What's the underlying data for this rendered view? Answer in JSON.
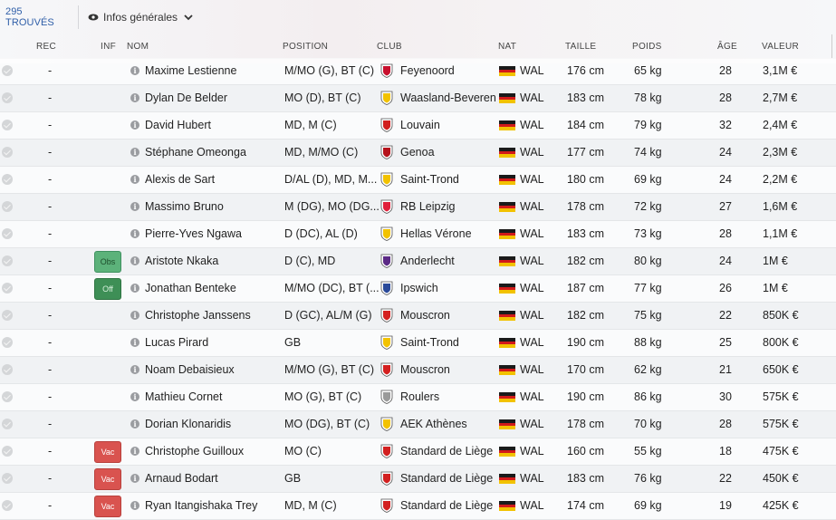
{
  "toolbar": {
    "found": "295 TROUVÉS",
    "view": "Infos générales"
  },
  "columns": {
    "rec": "REC",
    "inf": "INF",
    "nom": "NOM",
    "position": "POSITION",
    "club": "CLUB",
    "nat": "NAT",
    "taille": "TAILLE",
    "poids": "POIDS",
    "age": "ÂGE",
    "valeur": "VALEUR"
  },
  "colors": {
    "flag_black": "#1a1a1a",
    "flag_red": "#d21a1a",
    "flag_gold": "#f2c200"
  },
  "players": [
    {
      "rec": "-",
      "inf": "",
      "nom": "Maxime Lestienne",
      "position": "M/MO (G), BT (C)",
      "club": "Feyenoord",
      "crest": "#c8102e",
      "nat": "WAL",
      "taille": "176 cm",
      "poids": "65 kg",
      "age": "28",
      "valeur": "3,1M €"
    },
    {
      "rec": "-",
      "inf": "",
      "nom": "Dylan De Belder",
      "position": "MO (D), BT (C)",
      "club": "Waasland-Beveren",
      "crest": "#f2c200",
      "nat": "WAL",
      "taille": "183 cm",
      "poids": "78 kg",
      "age": "28",
      "valeur": "2,7M €"
    },
    {
      "rec": "-",
      "inf": "",
      "nom": "David Hubert",
      "position": "MD, M (C)",
      "club": "Louvain",
      "crest": "#d11f1f",
      "nat": "WAL",
      "taille": "184 cm",
      "poids": "79 kg",
      "age": "32",
      "valeur": "2,4M €"
    },
    {
      "rec": "-",
      "inf": "",
      "nom": "Stéphane Omeonga",
      "position": "MD, M/MO (C)",
      "club": "Genoa",
      "crest": "#b5121b",
      "nat": "WAL",
      "taille": "177 cm",
      "poids": "74 kg",
      "age": "24",
      "valeur": "2,3M €"
    },
    {
      "rec": "-",
      "inf": "",
      "nom": "Alexis de Sart",
      "position": "D/AL (D), MD, M...",
      "club": "Saint-Trond",
      "crest": "#f2c200",
      "nat": "WAL",
      "taille": "180 cm",
      "poids": "69 kg",
      "age": "24",
      "valeur": "2,2M €"
    },
    {
      "rec": "-",
      "inf": "",
      "nom": "Massimo Bruno",
      "position": "M (DG), MO (DG...",
      "club": "RB Leipzig",
      "crest": "#e0203a",
      "nat": "WAL",
      "taille": "178 cm",
      "poids": "72 kg",
      "age": "27",
      "valeur": "1,6M €"
    },
    {
      "rec": "-",
      "inf": "",
      "nom": "Pierre-Yves Ngawa",
      "position": "D (DC), AL (D)",
      "club": "Hellas Vérone",
      "crest": "#f2c200",
      "nat": "WAL",
      "taille": "183 cm",
      "poids": "73 kg",
      "age": "28",
      "valeur": "1,1M €"
    },
    {
      "rec": "-",
      "inf": "Obs",
      "nom": "Aristote Nkaka",
      "position": "D (C), MD",
      "club": "Anderlecht",
      "crest": "#5b2a86",
      "nat": "WAL",
      "taille": "182 cm",
      "poids": "80 kg",
      "age": "24",
      "valeur": "1M €"
    },
    {
      "rec": "-",
      "inf": "Off",
      "nom": "Jonathan Benteke",
      "position": "M/MO (DC), BT (...",
      "club": "Ipswich",
      "crest": "#2a4a9a",
      "nat": "WAL",
      "taille": "187 cm",
      "poids": "77 kg",
      "age": "26",
      "valeur": "1M €"
    },
    {
      "rec": "-",
      "inf": "",
      "nom": "Christophe Janssens",
      "position": "D (GC), AL/M (G)",
      "club": "Mouscron",
      "crest": "#d42020",
      "nat": "WAL",
      "taille": "182 cm",
      "poids": "75 kg",
      "age": "22",
      "valeur": "850K €"
    },
    {
      "rec": "-",
      "inf": "",
      "nom": "Lucas Pirard",
      "position": "GB",
      "club": "Saint-Trond",
      "crest": "#f2c200",
      "nat": "WAL",
      "taille": "190 cm",
      "poids": "88 kg",
      "age": "25",
      "valeur": "800K €"
    },
    {
      "rec": "-",
      "inf": "",
      "nom": "Noam Debaisieux",
      "position": "M/MO (G), BT (C)",
      "club": "Mouscron",
      "crest": "#d42020",
      "nat": "WAL",
      "taille": "170 cm",
      "poids": "62 kg",
      "age": "21",
      "valeur": "650K €"
    },
    {
      "rec": "-",
      "inf": "",
      "nom": "Mathieu Cornet",
      "position": "MO (G), BT (C)",
      "club": "Roulers",
      "crest": "#9a9a9a",
      "nat": "WAL",
      "taille": "190 cm",
      "poids": "86 kg",
      "age": "30",
      "valeur": "575K €"
    },
    {
      "rec": "-",
      "inf": "",
      "nom": "Dorian Klonaridis",
      "position": "MO (DG), BT (C)",
      "club": "AEK Athènes",
      "crest": "#f2c200",
      "nat": "WAL",
      "taille": "178 cm",
      "poids": "70 kg",
      "age": "28",
      "valeur": "575K €"
    },
    {
      "rec": "-",
      "inf": "Vac",
      "nom": "Christophe Guilloux",
      "position": "MO (C)",
      "club": "Standard de Liège",
      "crest": "#d22020",
      "nat": "WAL",
      "taille": "160 cm",
      "poids": "55 kg",
      "age": "18",
      "valeur": "475K €"
    },
    {
      "rec": "-",
      "inf": "Vac",
      "nom": "Arnaud Bodart",
      "position": "GB",
      "club": "Standard de Liège",
      "crest": "#d22020",
      "nat": "WAL",
      "taille": "183 cm",
      "poids": "76 kg",
      "age": "22",
      "valeur": "450K €"
    },
    {
      "rec": "-",
      "inf": "Vac",
      "nom": "Ryan Itangishaka Trey",
      "position": "MD, M (C)",
      "club": "Standard de Liège",
      "crest": "#d22020",
      "nat": "WAL",
      "taille": "174 cm",
      "poids": "69 kg",
      "age": "19",
      "valeur": "425K €"
    }
  ]
}
